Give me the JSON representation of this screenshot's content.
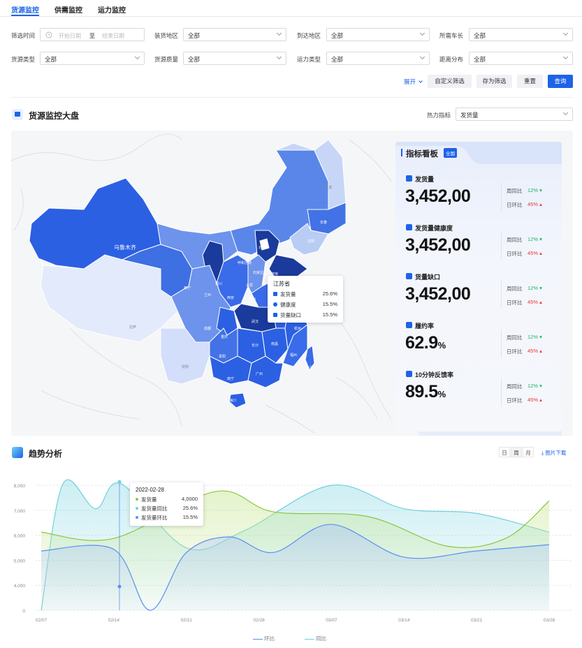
{
  "tabs": [
    "货源监控",
    "供需监控",
    "运力监控"
  ],
  "filters": {
    "row1": [
      {
        "label": "筛选时间",
        "type": "date",
        "start_placeholder": "开始日期",
        "sep": "至",
        "end_placeholder": "结束日期"
      },
      {
        "label": "装货地区",
        "value": "全部"
      },
      {
        "label": "到达地区",
        "value": "全部"
      },
      {
        "label": "所需车长",
        "value": "全部"
      }
    ],
    "row2": [
      {
        "label": "货源类型",
        "value": "全部"
      },
      {
        "label": "货源质量",
        "value": "全部"
      },
      {
        "label": "运力类型",
        "value": "全部"
      },
      {
        "label": "距离分布",
        "value": "全部"
      }
    ],
    "expand": "展开",
    "buttons": {
      "custom": "自定义筛选",
      "save": "存为筛选",
      "reset": "重置",
      "query": "查询"
    }
  },
  "dashboard": {
    "title": "货源监控大盘",
    "heat_label": "热力指标",
    "heat_value": "发货量",
    "map_labels": [
      "乌鲁木齐",
      "北京",
      "呼和浩特",
      "西宁",
      "兰州",
      "银川",
      "西安",
      "太原",
      "石家庄",
      "济南",
      "郑州",
      "南京",
      "合肥",
      "武汉",
      "成都",
      "重庆",
      "长沙",
      "南昌",
      "杭州",
      "福州",
      "贵阳",
      "南宁",
      "广州",
      "昆明",
      "拉萨",
      "沈阳",
      "长春",
      "哈尔滨",
      "台北",
      "海口"
    ],
    "tooltip": {
      "title": "江苏省",
      "rows": [
        {
          "k": "发货量",
          "v": "25.6%"
        },
        {
          "k": "健康度",
          "v": "15.5%"
        },
        {
          "k": "货量缺口",
          "v": "15.5%"
        }
      ]
    }
  },
  "kpi": {
    "title": "指标看板",
    "badge": "全国",
    "week_label": "周同比",
    "day_label": "日环比",
    "items": [
      {
        "name": "发货量",
        "value": "3,452,00",
        "unit": "",
        "week": "12%",
        "day": "45%"
      },
      {
        "name": "发货量健康度",
        "value": "3,452,00",
        "unit": "",
        "week": "12%",
        "day": "45%"
      },
      {
        "name": "货量缺口",
        "value": "3,452,00",
        "unit": "",
        "week": "12%",
        "day": "45%"
      },
      {
        "name": "履约率",
        "value": "62.9",
        "unit": "%",
        "week": "12%",
        "day": "45%"
      },
      {
        "name": "10分钟反馈率",
        "value": "89.5",
        "unit": "%",
        "week": "12%",
        "day": "45%"
      }
    ]
  },
  "trend": {
    "title": "趋势分析",
    "toggles": [
      "日",
      "周",
      "月"
    ],
    "download": "图片下载",
    "tooltip": {
      "date": "2022-02-28",
      "rows": [
        {
          "k": "发货量",
          "v": "4,0000",
          "color": "#8cc63f"
        },
        {
          "k": "发货量同比",
          "v": "25.6%",
          "color": "#6fd0dd"
        },
        {
          "k": "发货量环比",
          "v": "15.5%",
          "color": "#5b8ff0"
        }
      ]
    },
    "legend": [
      "环比",
      "同比"
    ]
  },
  "chart_data": {
    "type": "area",
    "x": [
      "02/07",
      "02/14",
      "02/21",
      "02/28",
      "03/07",
      "03/14",
      "03/21",
      "03/28"
    ],
    "yticks": [
      "8,000",
      "7,000",
      "6,000",
      "5,000",
      "4,000",
      "0"
    ],
    "ylim": [
      0,
      8000
    ],
    "series": [
      {
        "name": "同比",
        "color": "#6fd0dd",
        "points": [
          [
            0,
            0
          ],
          [
            0.3,
            8100
          ],
          [
            0.75,
            6500
          ],
          [
            1.1,
            8100
          ],
          [
            2,
            4000
          ],
          [
            2.8,
            5100
          ],
          [
            4,
            8000
          ],
          [
            5,
            6500
          ],
          [
            6,
            6200
          ],
          [
            7,
            5000
          ]
        ]
      },
      {
        "name": "",
        "color": "#8cc63f",
        "points": [
          [
            0,
            5000
          ],
          [
            1,
            4600
          ],
          [
            2.4,
            7600
          ],
          [
            3.2,
            6300
          ],
          [
            4.5,
            6000
          ],
          [
            5.6,
            4100
          ],
          [
            6.4,
            4600
          ],
          [
            7,
            7000
          ]
        ]
      },
      {
        "name": "环比",
        "color": "#5b8ff0",
        "points": [
          [
            0,
            3800
          ],
          [
            1,
            3900
          ],
          [
            1.5,
            0
          ],
          [
            2,
            3700
          ],
          [
            2.6,
            4700
          ],
          [
            3.2,
            3700
          ],
          [
            4,
            5500
          ],
          [
            5,
            3400
          ],
          [
            6,
            3800
          ],
          [
            7,
            4200
          ]
        ]
      }
    ]
  }
}
